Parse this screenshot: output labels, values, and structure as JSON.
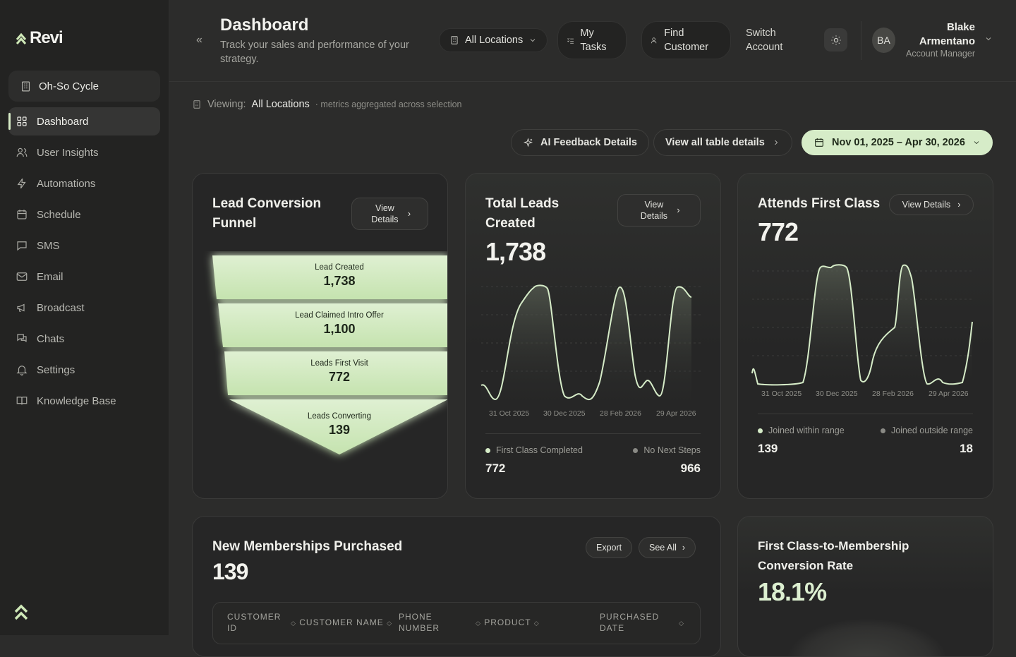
{
  "brand": {
    "name": "Revi",
    "accent": "#d6ecc8"
  },
  "sidebar": {
    "org": "Oh-So Cycle",
    "items": [
      {
        "label": "Dashboard",
        "icon": "grid-icon",
        "active": true
      },
      {
        "label": "User Insights",
        "icon": "users-icon"
      },
      {
        "label": "Automations",
        "icon": "bolt-icon"
      },
      {
        "label": "Schedule",
        "icon": "calendar-icon"
      },
      {
        "label": "SMS",
        "icon": "chat-bubble-icon"
      },
      {
        "label": "Email",
        "icon": "mail-icon"
      },
      {
        "label": "Broadcast",
        "icon": "megaphone-icon"
      },
      {
        "label": "Chats",
        "icon": "chats-icon"
      },
      {
        "label": "Settings",
        "icon": "bell-icon"
      },
      {
        "label": "Knowledge Base",
        "icon": "book-icon"
      }
    ]
  },
  "header": {
    "title": "Dashboard",
    "subtitle": "Track your sales and performance of your strategy.",
    "locations": "All Locations",
    "tasks": "My Tasks",
    "find": "Find Customer",
    "switch": "Switch Account",
    "user": {
      "initials": "BA",
      "name": "Blake Armentano",
      "role": "Account Manager"
    }
  },
  "viewing": {
    "label": "Viewing:",
    "location": "All Locations",
    "note": "· metrics aggregated across selection"
  },
  "actions": {
    "ai": "AI Feedback Details",
    "table": "View all table details",
    "date": "Nov 01, 2025 – Apr 30, 2026"
  },
  "funnel": {
    "title": "Lead Conversion Funnel",
    "button": "View Details",
    "stages": [
      {
        "label": "Lead Created",
        "value": "1,738"
      },
      {
        "label": "Lead Claimed Intro Offer",
        "value": "1,100"
      },
      {
        "label": "Leads First Visit",
        "value": "772"
      },
      {
        "label": "Leads Converting",
        "value": "139"
      }
    ]
  },
  "total_leads": {
    "title": "Total Leads Created",
    "value": "1,738",
    "button": "View Details",
    "ticks": [
      "31 Oct 2025",
      "30 Dec 2025",
      "28 Feb 2026",
      "29 Apr 2026"
    ],
    "legend": [
      {
        "label": "First Class Completed",
        "value": "772",
        "color": "#d6ecc8"
      },
      {
        "label": "No Next Steps",
        "value": "966",
        "color": "#8a8a85"
      }
    ]
  },
  "attends": {
    "title": "Attends First Class",
    "value": "772",
    "button": "View Details",
    "ticks": [
      "31 Oct 2025",
      "30 Dec 2025",
      "28 Feb 2026",
      "29 Apr 2026"
    ],
    "legend": [
      {
        "label": "Joined within range",
        "value": "139",
        "color": "#d6ecc8"
      },
      {
        "label": "Joined outside range",
        "value": "18",
        "color": "#8a8a85"
      }
    ]
  },
  "memberships": {
    "title": "New Memberships Purchased",
    "value": "139",
    "export": "Export",
    "see_all": "See All",
    "columns": [
      "CUSTOMER ID",
      "CUSTOMER NAME",
      "PHONE NUMBER",
      "PRODUCT",
      "PURCHASED DATE"
    ]
  },
  "conversion": {
    "title": "First Class-to-Membership Conversion Rate",
    "value": "18.1%"
  }
}
